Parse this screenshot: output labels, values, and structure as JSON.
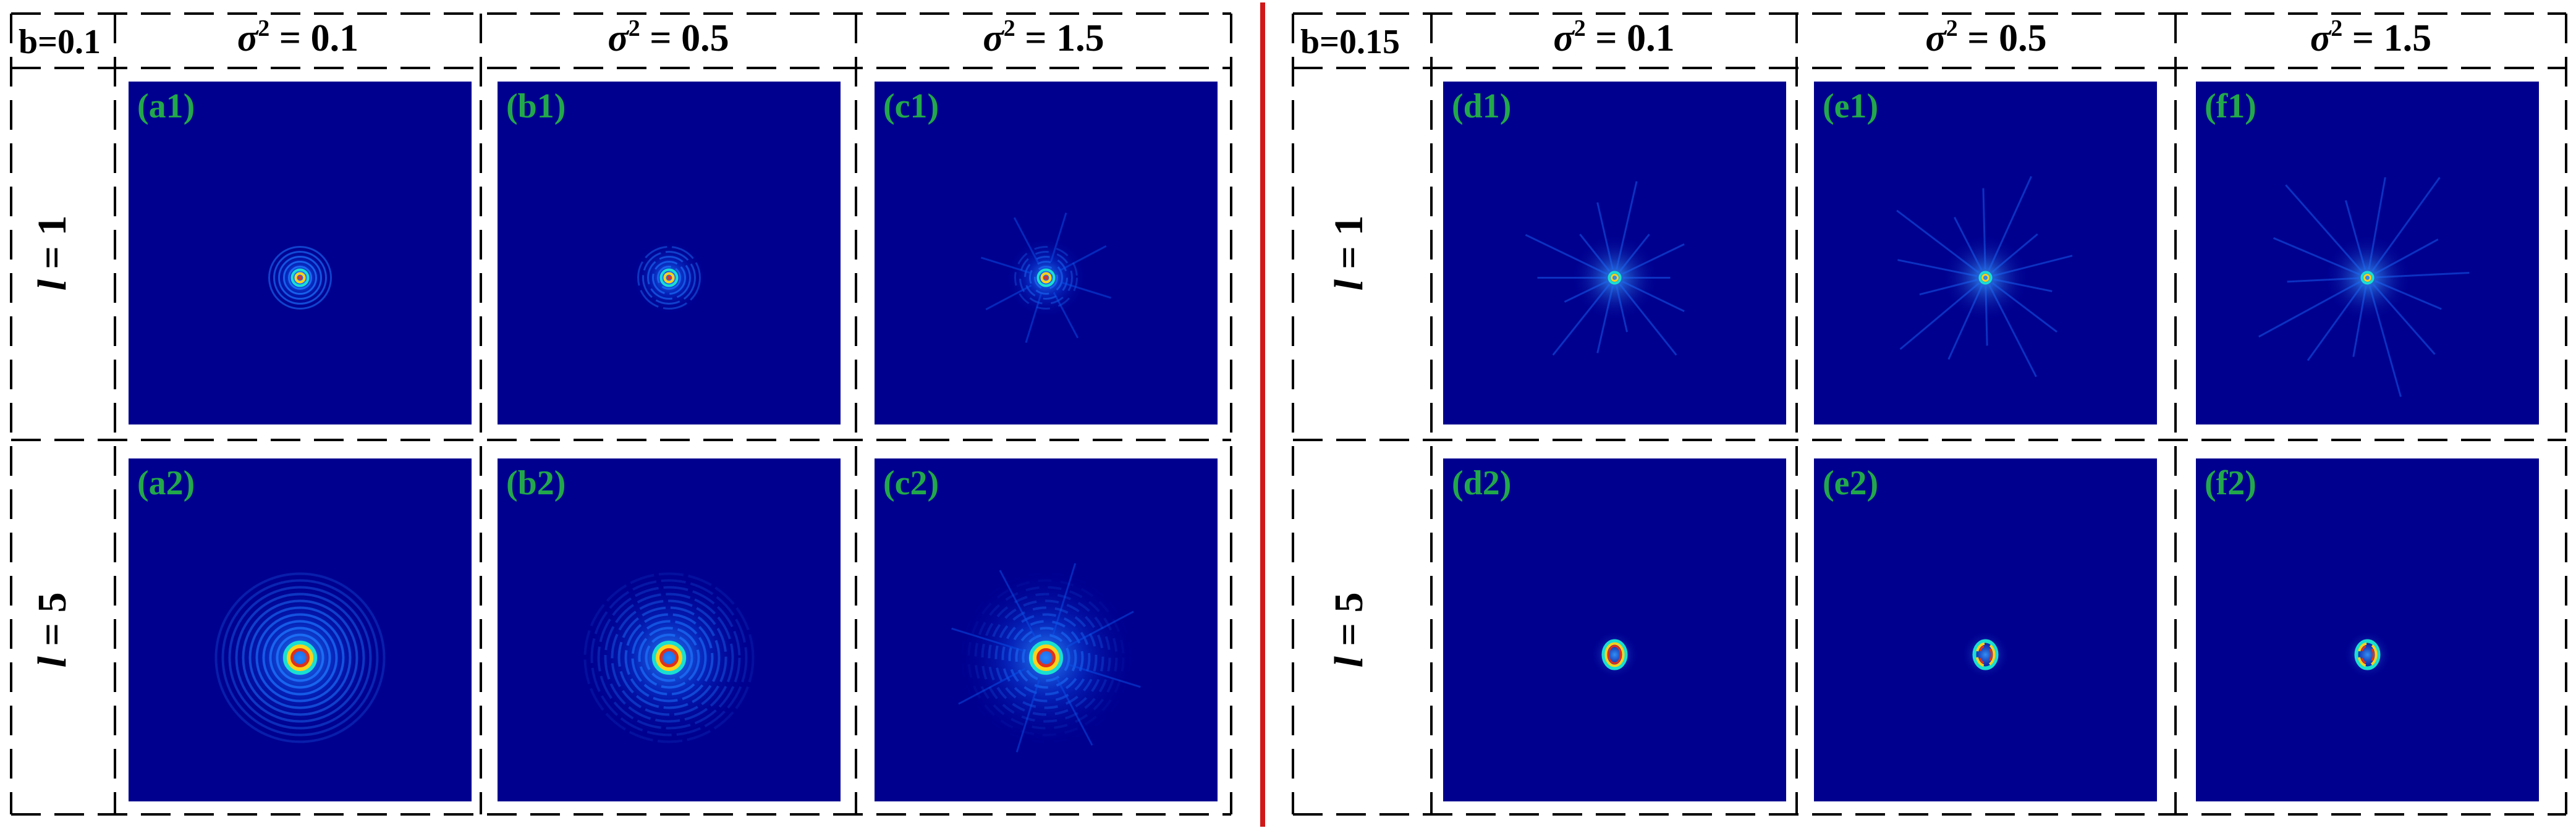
{
  "colors": {
    "panel_background": "#00008f",
    "dashed_lines": "#000000",
    "panel_label": "#22a84a",
    "divider": "#d01818"
  },
  "groups": [
    {
      "b_label": "b=0.1",
      "column_headers": [
        {
          "sym": "σ",
          "sup": "2",
          "value": " = 0.1"
        },
        {
          "sym": "σ",
          "sup": "2",
          "value": " = 0.5"
        },
        {
          "sym": "σ",
          "sup": "2",
          "value": " = 1.5"
        }
      ],
      "row_labels": [
        {
          "var": "l",
          "value": " = 1"
        },
        {
          "var": "l",
          "value": " = 5"
        }
      ],
      "panels": [
        [
          "(a1)",
          "(b1)",
          "(c1)"
        ],
        [
          "(a2)",
          "(b2)",
          "(c2)"
        ]
      ]
    },
    {
      "b_label": "b=0.15",
      "column_headers": [
        {
          "sym": "σ",
          "sup": "2",
          "value": " = 0.1"
        },
        {
          "sym": "σ",
          "sup": "2",
          "value": " = 0.5"
        },
        {
          "sym": "σ",
          "sup": "2",
          "value": " = 1.5"
        }
      ],
      "row_labels": [
        {
          "var": "l",
          "value": " = 1"
        },
        {
          "var": "l",
          "value": " = 5"
        }
      ],
      "panels": [
        [
          "(d1)",
          "(e1)",
          "(f1)"
        ],
        [
          "(d2)",
          "(e2)",
          "(f2)"
        ]
      ]
    }
  ]
}
